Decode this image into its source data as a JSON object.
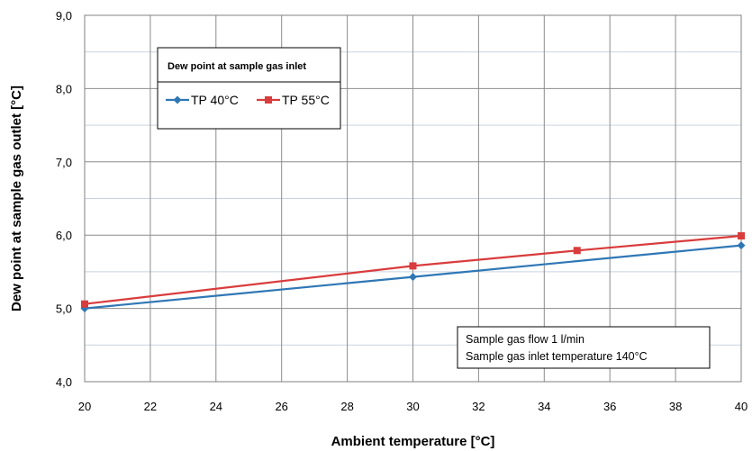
{
  "chart_data": {
    "type": "line",
    "xlabel": "Ambient temperature [°C]",
    "ylabel": "Dew point at sample gas outlet [°C]",
    "xlim": [
      20,
      40
    ],
    "ylim": [
      4.0,
      9.0
    ],
    "x_ticks": [
      "20",
      "22",
      "24",
      "26",
      "28",
      "30",
      "32",
      "34",
      "36",
      "38",
      "40"
    ],
    "y_ticks": [
      "4,0",
      "5,0",
      "6,0",
      "7,0",
      "8,0",
      "9,0"
    ],
    "grid": true,
    "legend": {
      "title": "Dew point at sample gas inlet",
      "placement": "top-left"
    },
    "series": [
      {
        "name": "TP 40°C",
        "color": "#2f77b5",
        "marker": "diamond",
        "points": [
          [
            20,
            5.0
          ],
          [
            30,
            5.43
          ],
          [
            40,
            5.86
          ]
        ]
      },
      {
        "name": "TP 55°C",
        "color": "#d93c3c",
        "marker": "square",
        "points": [
          [
            20,
            5.06
          ],
          [
            30,
            5.58
          ],
          [
            35,
            5.79
          ],
          [
            40,
            5.99
          ]
        ]
      }
    ],
    "annotation": [
      "Sample gas flow 1 l/min",
      "Sample gas inlet temperature 140°C"
    ]
  }
}
